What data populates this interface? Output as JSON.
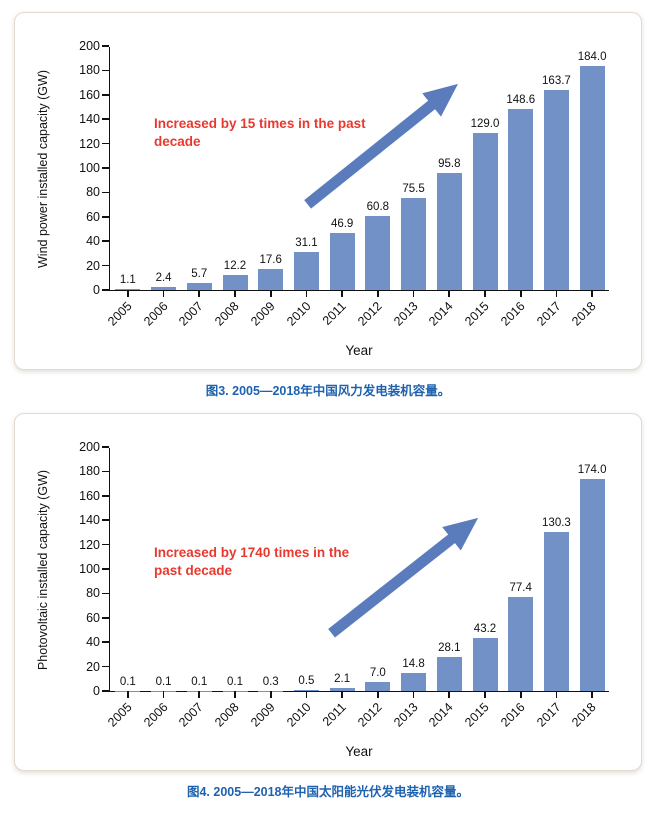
{
  "chart_data": [
    {
      "type": "bar",
      "categories": [
        "2005",
        "2006",
        "2007",
        "2008",
        "2009",
        "2010",
        "2011",
        "2012",
        "2013",
        "2014",
        "2015",
        "2016",
        "2017",
        "2018"
      ],
      "values": [
        1.1,
        2.4,
        5.7,
        12.2,
        17.6,
        31.1,
        46.9,
        60.8,
        75.5,
        95.8,
        129.0,
        148.6,
        163.7,
        184.0
      ],
      "value_labels": [
        "1.1",
        "2.4",
        "5.7",
        "12.2",
        "17.6",
        "31.1",
        "46.9",
        "60.8",
        "75.5",
        "95.8",
        "129.0",
        "148.6",
        "163.7",
        "184.0"
      ],
      "title": "",
      "xlabel": "Year",
      "ylabel": "Wind power installed capacity (GW)",
      "ylim": [
        0,
        200
      ],
      "ytick_step": 20,
      "grid": "off",
      "annotation": "Increased by 15 times in the past decade",
      "bar_color": "#7291c7",
      "arrow_color": "#5b7cbc",
      "annotation_color": "#e8392f",
      "caption": "图3. 2005—2018年中国风力发电装机容量。"
    },
    {
      "type": "bar",
      "categories": [
        "2005",
        "2006",
        "2007",
        "2008",
        "2009",
        "2010",
        "2011",
        "2012",
        "2013",
        "2014",
        "2015",
        "2016",
        "2017",
        "2018"
      ],
      "values": [
        0.1,
        0.1,
        0.1,
        0.1,
        0.3,
        0.5,
        2.1,
        7.0,
        14.8,
        28.1,
        43.2,
        77.4,
        130.3,
        174.0
      ],
      "value_labels": [
        "0.1",
        "0.1",
        "0.1",
        "0.1",
        "0.3",
        "0.5",
        "2.1",
        "7.0",
        "14.8",
        "28.1",
        "43.2",
        "77.4",
        "130.3",
        "174.0"
      ],
      "title": "",
      "xlabel": "Year",
      "ylabel": "Photovoltaic installed capacity (GW)",
      "ylim": [
        0,
        200
      ],
      "ytick_step": 20,
      "grid": "off",
      "annotation": "Increased by 1740 times in the past decade",
      "bar_color": "#7291c7",
      "arrow_color": "#5b7cbc",
      "annotation_color": "#e8392f",
      "caption": "图4. 2005—2018年中国太阳能光伏发电装机容量。"
    }
  ]
}
